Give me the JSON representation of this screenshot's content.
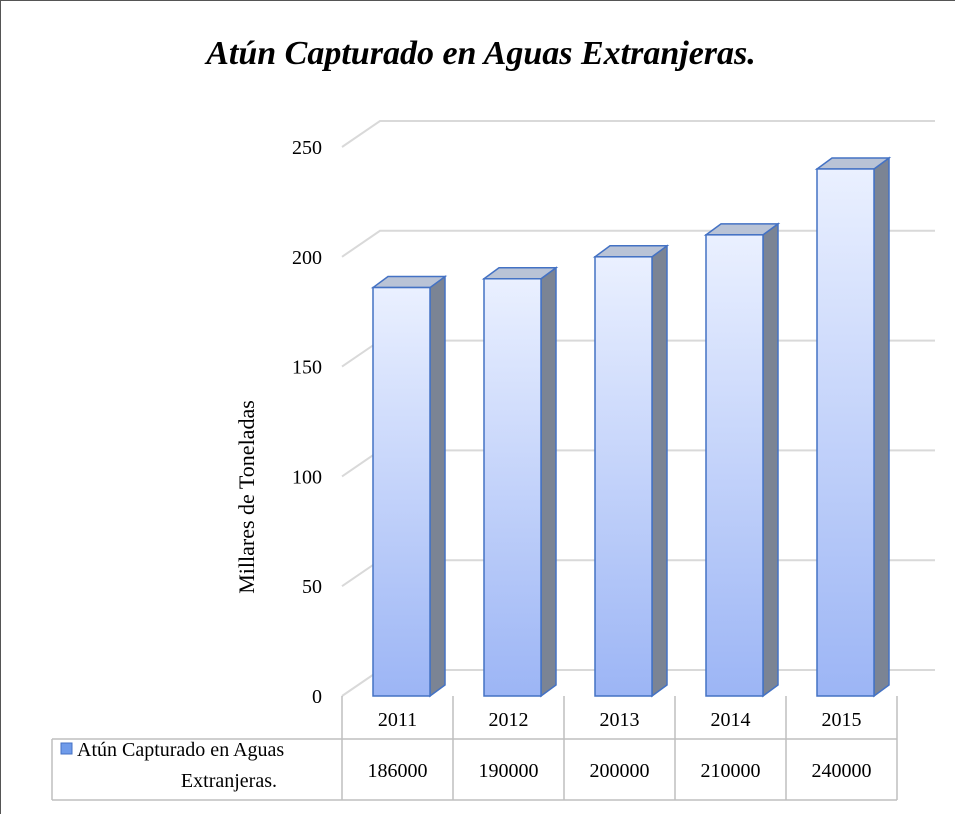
{
  "colors": {
    "bar_front_top": "#eaf0ff",
    "bar_front_bottom": "#9cb5f5",
    "bar_side": "#7b8494",
    "bar_top": "#b9c3d6",
    "bar_stroke": "#4472c4",
    "grid": "#d9d9d9",
    "table_border": "#bfbfbf",
    "legend_key": "#6f9bea"
  },
  "chart_data": {
    "type": "bar",
    "title": "Atún Capturado en Aguas Extranjeras.",
    "xlabel": "",
    "ylabel": "Millares de Toneladas",
    "categories": [
      "2011",
      "2012",
      "2013",
      "2014",
      "2015"
    ],
    "series": [
      {
        "name": "Atún Capturado en Aguas Extranjeras.",
        "values": [
          186,
          190,
          200,
          210,
          240
        ]
      }
    ],
    "y_ticks": [
      "0",
      "50",
      "100",
      "150",
      "200",
      "250"
    ],
    "ylim": [
      0,
      250
    ],
    "grid": true,
    "legend_placement": "data-table",
    "data_table": {
      "legend_label_lines": [
        "Atún Capturado en Aguas",
        "Extranjeras."
      ],
      "values": [
        "186000",
        "190000",
        "200000",
        "210000",
        "240000"
      ]
    }
  }
}
